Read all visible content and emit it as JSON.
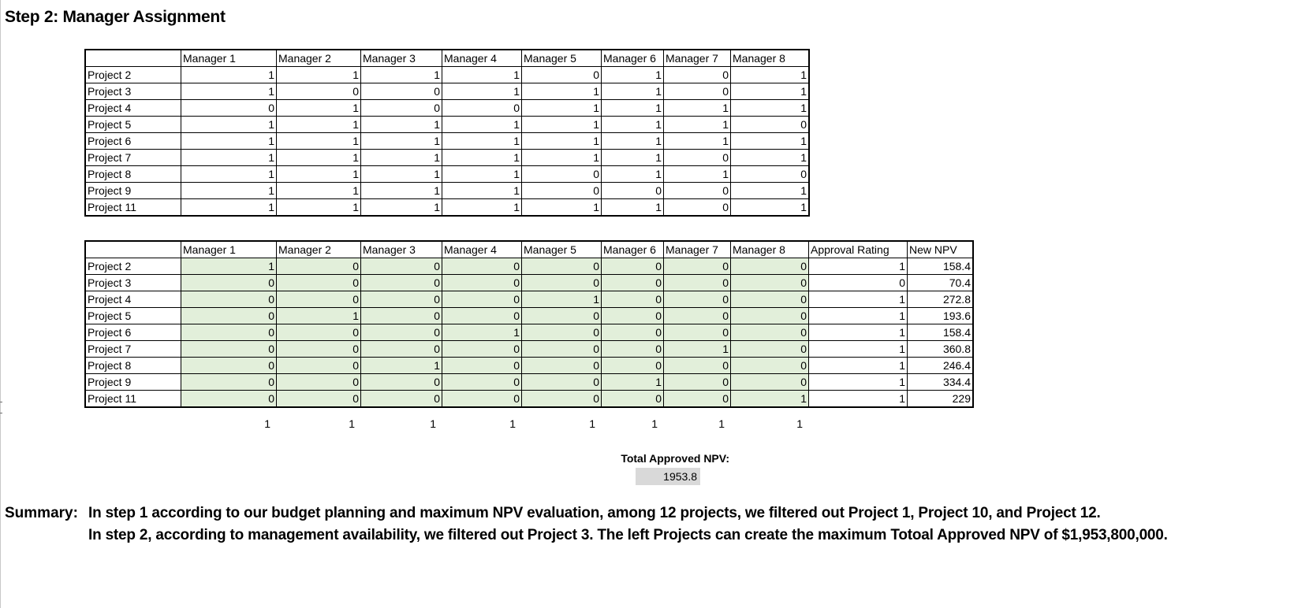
{
  "heading": "Step 2: Manager Assignment",
  "managers": [
    "Manager 1",
    "Manager 2",
    "Manager 3",
    "Manager 4",
    "Manager 5",
    "Manager 6",
    "Manager 7",
    "Manager 8"
  ],
  "projects": [
    "Project 2",
    "Project 3",
    "Project 4",
    "Project 5",
    "Project 6",
    "Project 7",
    "Project 8",
    "Project 9",
    "Project 11"
  ],
  "availability": [
    [
      1,
      1,
      1,
      1,
      0,
      1,
      0,
      1
    ],
    [
      1,
      0,
      0,
      1,
      1,
      1,
      0,
      1
    ],
    [
      0,
      1,
      0,
      0,
      1,
      1,
      1,
      1
    ],
    [
      1,
      1,
      1,
      1,
      1,
      1,
      1,
      0
    ],
    [
      1,
      1,
      1,
      1,
      1,
      1,
      1,
      1
    ],
    [
      1,
      1,
      1,
      1,
      1,
      1,
      0,
      1
    ],
    [
      1,
      1,
      1,
      1,
      0,
      1,
      1,
      0
    ],
    [
      1,
      1,
      1,
      1,
      0,
      0,
      0,
      1
    ],
    [
      1,
      1,
      1,
      1,
      1,
      1,
      0,
      1
    ]
  ],
  "assignment": [
    [
      1,
      0,
      0,
      0,
      0,
      0,
      0,
      0
    ],
    [
      0,
      0,
      0,
      0,
      0,
      0,
      0,
      0
    ],
    [
      0,
      0,
      0,
      0,
      1,
      0,
      0,
      0
    ],
    [
      0,
      1,
      0,
      0,
      0,
      0,
      0,
      0
    ],
    [
      0,
      0,
      0,
      1,
      0,
      0,
      0,
      0
    ],
    [
      0,
      0,
      0,
      0,
      0,
      0,
      1,
      0
    ],
    [
      0,
      0,
      1,
      0,
      0,
      0,
      0,
      0
    ],
    [
      0,
      0,
      0,
      0,
      0,
      1,
      0,
      0
    ],
    [
      0,
      0,
      0,
      0,
      0,
      0,
      0,
      1
    ]
  ],
  "approval_header": "Approval Rating",
  "npv_header": "New NPV",
  "approval": [
    1,
    0,
    1,
    1,
    1,
    1,
    1,
    1,
    1
  ],
  "new_npv": [
    "158.4",
    "70.4",
    "272.8",
    "193.6",
    "158.4",
    "360.8",
    "246.4",
    "334.4",
    "229"
  ],
  "column_totals": [
    1,
    1,
    1,
    1,
    1,
    1,
    1,
    1
  ],
  "total_npv_label": "Total Approved NPV:",
  "total_npv_value": "1953.8",
  "summary_label": "Summary:",
  "summary_line1": "In step 1 according to our budget planning and maximum NPV evaluation, among 12 projects, we filtered out Project 1, Project 10, and Project 12.",
  "summary_line2": "In step 2, according to management availability, we filtered out Project 3. The left Projects can create the maximum Totoal Approved NPV of $1,953,800,000."
}
